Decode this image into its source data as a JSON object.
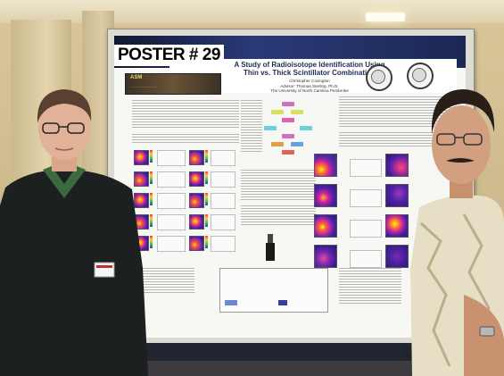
{
  "poster": {
    "number": "POSTER # 29",
    "title_line1": "A Study of Radioisotope Identification Using",
    "title_line2": "Thin vs. Thick Scintillator Combination",
    "author": "Christopher Covington",
    "advisor": "Advisor: Thomas Sterling, Ph.D.",
    "institution": "The University of North Carolina Pembroke"
  },
  "colors": {
    "poster_header": "#1c2854",
    "title_text": "#1e2a5a",
    "heatmap_hot": "#ffef3a",
    "heatmap_cool": "#2c1878"
  }
}
